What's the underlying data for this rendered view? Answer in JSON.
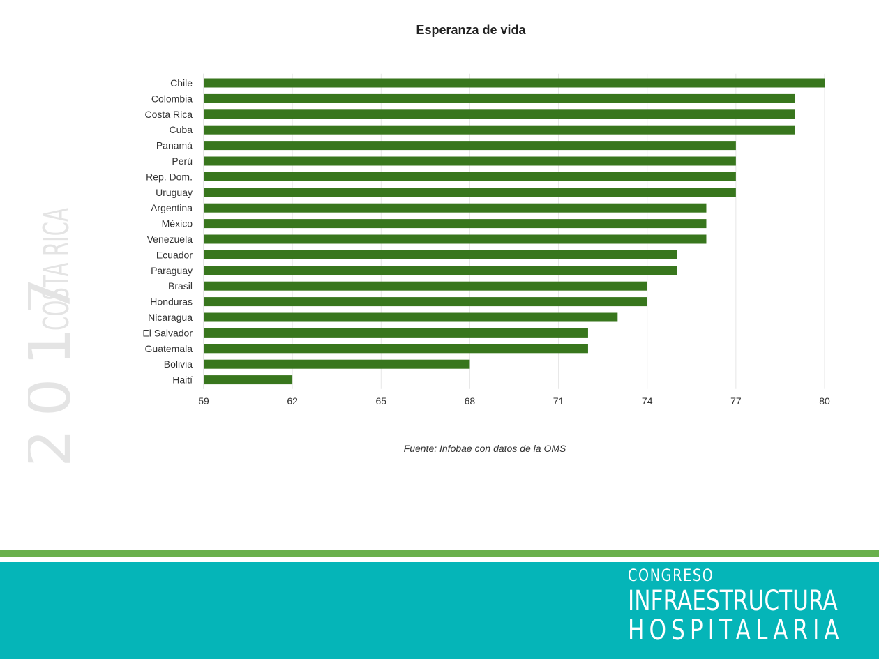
{
  "side_banner": {
    "year": "2017",
    "place": "COSTA RICA"
  },
  "chart_data": {
    "type": "bar",
    "orientation": "horizontal",
    "title": "Esperanza de vida",
    "caption": "Fuente: Infobae con datos de la OMS",
    "categories": [
      "Chile",
      "Colombia",
      "Costa Rica",
      "Cuba",
      "Panamá",
      "Perú",
      "Rep. Dom.",
      "Uruguay",
      "Argentina",
      "México",
      "Venezuela",
      "Ecuador",
      "Paraguay",
      "Brasil",
      "Honduras",
      "Nicaragua",
      "El Salvador",
      "Guatemala",
      "Bolivia",
      "Haití"
    ],
    "values": [
      80,
      79,
      79,
      79,
      77,
      77,
      77,
      77,
      76,
      76,
      76,
      75,
      75,
      74,
      74,
      73,
      72,
      72,
      68,
      62
    ],
    "xlim": [
      59,
      80
    ],
    "xticks": [
      59,
      62,
      65,
      68,
      71,
      74,
      77,
      80
    ],
    "grid": "vertical",
    "bar_color": "#38761d",
    "grid_color": "#e6e6e6"
  },
  "footer": {
    "line1": "CONGRESO",
    "line2": "INFRAESTRUCTURA",
    "line3": "HOSPITALARIA",
    "band_color": "#05b5b8",
    "stripe_color": "#6ab04c"
  }
}
